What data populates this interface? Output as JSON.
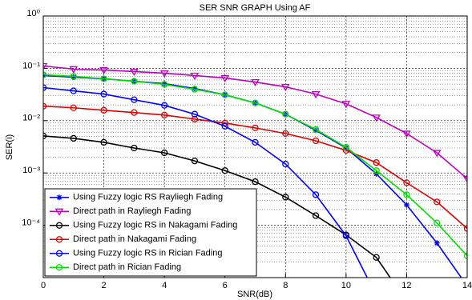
{
  "chart_data": {
    "type": "line",
    "title": "SER SNR GRAPH Using AF",
    "x_label": "SNR(dB)",
    "y_label": "SER(i)",
    "x": [
      0,
      1,
      2,
      3,
      4,
      5,
      6,
      7,
      8,
      9,
      10,
      11,
      12,
      13,
      14
    ],
    "xlim": [
      0,
      14
    ],
    "xticks": [
      0,
      2,
      4,
      6,
      8,
      10,
      12,
      14
    ],
    "ylim": [
      1e-05,
      1
    ],
    "y_scale": "log",
    "yticks": [
      {
        "value": 1,
        "label": "10⁰"
      },
      {
        "value": 0.1,
        "label": "10⁻¹"
      },
      {
        "value": 0.01,
        "label": "10⁻²"
      },
      {
        "value": 0.001,
        "label": "10⁻³"
      },
      {
        "value": 0.0001,
        "label": "10⁻⁴"
      }
    ],
    "grid": true,
    "minor_grid": true,
    "legend_position": "lower-left",
    "series": [
      {
        "name": "Using Fuzzy logic RS Rayliegh Fading",
        "color": "#0000ff",
        "marker": "star",
        "values": [
          0.0727,
          0.0678,
          0.0631,
          0.0567,
          0.0509,
          0.0411,
          0.0311,
          0.0218,
          0.0133,
          0.00653,
          0.003,
          0.00096,
          0.000245,
          4.58e-05,
          6.9e-06
        ]
      },
      {
        "name": "Direct path in Rayliegh Fading",
        "color": "#bf00bf",
        "marker": "triangle-down",
        "values": [
          0.111,
          0.0966,
          0.093,
          0.0868,
          0.0809,
          0.0727,
          0.0654,
          0.0547,
          0.0443,
          0.0322,
          0.021,
          0.0115,
          0.00568,
          0.00243,
          0.00078
        ]
      },
      {
        "name": "Using Fuzzy logic RS in Nakagami Fading",
        "color": "#000000",
        "marker": "circle",
        "values": [
          0.0051,
          0.00459,
          0.00385,
          0.003,
          0.00243,
          0.0017,
          0.00111,
          0.00068,
          0.000345,
          0.000153,
          6.54e-05,
          2.43e-05,
          3.5e-06,
          null,
          null
        ]
      },
      {
        "name": "Direct path in Nakagami Fading",
        "color": "#e00000",
        "marker": "circle",
        "values": [
          0.0189,
          0.0176,
          0.0158,
          0.0143,
          0.0128,
          0.0107,
          0.009,
          0.00727,
          0.00568,
          0.00412,
          0.0027,
          0.00158,
          0.00065,
          0.00028,
          8.68e-05
        ]
      },
      {
        "name": "Using Fuzzy logic RS in Rician Fading",
        "color": "#0000ff",
        "marker": "circle",
        "values": [
          0.0428,
          0.0371,
          0.0322,
          0.0251,
          0.0196,
          0.0133,
          0.0078,
          0.00385,
          0.00148,
          0.000384,
          6.3e-05,
          4.5e-06,
          null,
          null,
          null
        ]
      },
      {
        "name": "Direct path in Rician Fading",
        "color": "#00e000",
        "marker": "circle",
        "values": [
          0.0753,
          0.0702,
          0.0631,
          0.0567,
          0.0493,
          0.0398,
          0.0311,
          0.0218,
          0.0133,
          0.00678,
          0.0031,
          0.00111,
          0.000384,
          0.000111,
          2.6e-05
        ]
      }
    ]
  }
}
